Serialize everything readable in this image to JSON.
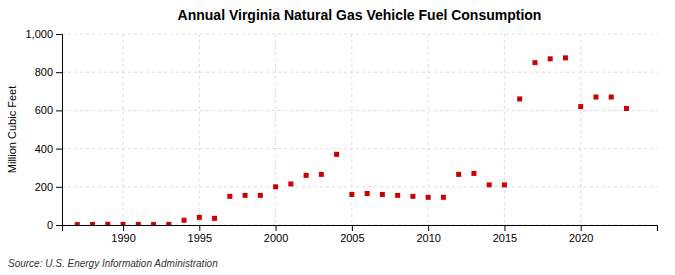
{
  "chart_data": {
    "type": "scatter",
    "title": "Annual Virginia Natural Gas Vehicle Fuel Consumption",
    "y_label": "Million Cubic Feet",
    "annotations": [
      "Source: U.S. Energy Information Administration"
    ],
    "color": "#cc0000",
    "marker": "square",
    "grid": true,
    "x": [
      1987,
      1988,
      1989,
      1990,
      1991,
      1992,
      1993,
      1994,
      1995,
      1996,
      1997,
      1998,
      1999,
      2000,
      2001,
      2002,
      2003,
      2004,
      2005,
      2006,
      2007,
      2008,
      2009,
      2010,
      2011,
      2012,
      2013,
      2014,
      2015,
      2016,
      2017,
      2018,
      2019,
      2020,
      2021,
      2022,
      2023
    ],
    "values": [
      2,
      3,
      4,
      3,
      3,
      2,
      3,
      25,
      40,
      35,
      150,
      155,
      155,
      200,
      215,
      260,
      265,
      370,
      160,
      165,
      160,
      155,
      150,
      145,
      145,
      265,
      270,
      210,
      210,
      660,
      850,
      870,
      875,
      620,
      670,
      670,
      610
    ],
    "xlim": [
      1986,
      2025
    ],
    "xticks": [
      1990,
      1995,
      2000,
      2005,
      2010,
      2015,
      2020
    ],
    "ylim": [
      0,
      1000
    ],
    "yticks": [
      0,
      200,
      400,
      600,
      800,
      {
        "value": 1000,
        "label": "1,000"
      }
    ]
  }
}
